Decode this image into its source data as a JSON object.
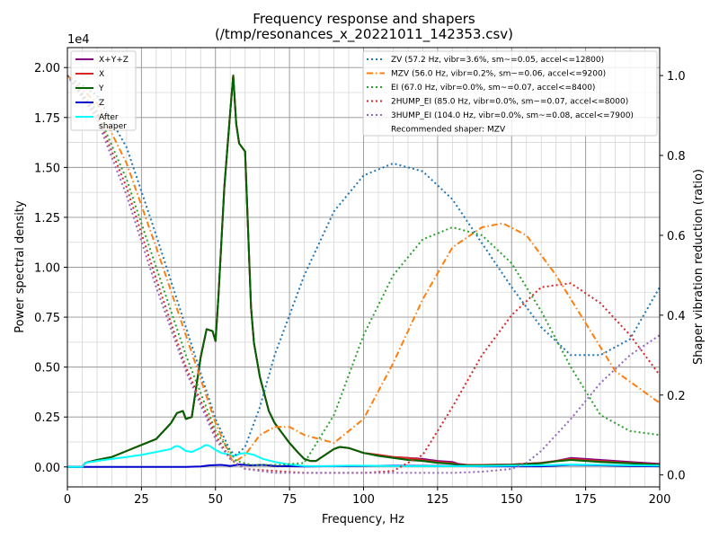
{
  "chart_data": {
    "type": "line",
    "title_line1": "Frequency response and shapers",
    "title_line2": "(/tmp/resonances_x_20221011_142353.csv)",
    "xlabel": "Frequency, Hz",
    "ylabel": "Power spectral density",
    "y2label": "Shaper vibration reduction (ratio)",
    "y_offset_label": "1e4",
    "xlim": [
      0,
      200
    ],
    "ylim": [
      -0.1,
      2.1
    ],
    "y2lim": [
      -0.03,
      1.07
    ],
    "x_ticks": [
      0,
      25,
      50,
      75,
      100,
      125,
      150,
      175,
      200
    ],
    "y_ticks": [
      0.0,
      0.25,
      0.5,
      0.75,
      1.0,
      1.25,
      1.5,
      1.75,
      2.0
    ],
    "y_tick_labels": [
      "0.00",
      "0.25",
      "0.50",
      "0.75",
      "1.00",
      "1.25",
      "1.50",
      "1.75",
      "2.00"
    ],
    "y2_ticks": [
      0.0,
      0.2,
      0.4,
      0.6,
      0.8,
      1.0
    ],
    "y2_tick_labels": [
      "0.0",
      "0.2",
      "0.4",
      "0.6",
      "0.8",
      "1.0"
    ],
    "grid": true,
    "psd_legend_loc": "upper left",
    "shaper_legend_loc": "upper right",
    "recommended_text": "Recommended shaper: MZV",
    "psd_series": [
      {
        "name": "X+Y+Z",
        "color": "#800080",
        "width": 2,
        "dash": "",
        "x": [
          0,
          5,
          6,
          10,
          15,
          20,
          25,
          30,
          35,
          37,
          39,
          40,
          42,
          45,
          47,
          49,
          50,
          51,
          53,
          55,
          56,
          57,
          58,
          60,
          62,
          63,
          65,
          68,
          70,
          72,
          75,
          78,
          80,
          82,
          84,
          87,
          90,
          92,
          95,
          100,
          105,
          110,
          115,
          120,
          125,
          130,
          132,
          135,
          140,
          150,
          160,
          165,
          170,
          175,
          180,
          190,
          200
        ],
        "y": [
          0,
          0,
          0.02,
          0.035,
          0.05,
          0.08,
          0.11,
          0.14,
          0.22,
          0.27,
          0.28,
          0.24,
          0.25,
          0.55,
          0.69,
          0.68,
          0.63,
          0.85,
          1.4,
          1.78,
          1.96,
          1.72,
          1.62,
          1.58,
          0.8,
          0.62,
          0.45,
          0.28,
          0.22,
          0.18,
          0.12,
          0.07,
          0.04,
          0.03,
          0.03,
          0.06,
          0.09,
          0.1,
          0.095,
          0.07,
          0.06,
          0.05,
          0.045,
          0.04,
          0.03,
          0.025,
          0.015,
          0.01,
          0.01,
          0.012,
          0.02,
          0.03,
          0.045,
          0.04,
          0.035,
          0.025,
          0.015
        ]
      },
      {
        "name": "X",
        "color": "#d62728",
        "width": 2,
        "dash": "",
        "x": [
          0,
          5,
          6,
          10,
          15,
          20,
          25,
          30,
          35,
          37,
          39,
          40,
          42,
          45,
          47,
          49,
          50,
          51,
          53,
          55,
          56,
          57,
          58,
          60,
          62,
          63,
          65,
          68,
          70,
          72,
          75,
          78,
          80,
          82,
          84,
          87,
          90,
          92,
          95,
          100,
          105,
          110,
          115,
          120,
          125,
          130,
          132,
          135,
          140,
          150,
          160,
          165,
          170,
          175,
          180,
          190,
          200
        ],
        "y": [
          0,
          0,
          0.02,
          0.035,
          0.05,
          0.08,
          0.11,
          0.14,
          0.22,
          0.27,
          0.28,
          0.24,
          0.25,
          0.55,
          0.69,
          0.68,
          0.63,
          0.85,
          1.4,
          1.78,
          1.96,
          1.72,
          1.62,
          1.58,
          0.8,
          0.62,
          0.45,
          0.28,
          0.22,
          0.18,
          0.12,
          0.07,
          0.04,
          0.03,
          0.03,
          0.06,
          0.09,
          0.1,
          0.095,
          0.07,
          0.06,
          0.05,
          0.045,
          0.035,
          0.025,
          0.02,
          0.012,
          0.01,
          0.01,
          0.012,
          0.02,
          0.03,
          0.04,
          0.035,
          0.03,
          0.02,
          0.012
        ]
      },
      {
        "name": "Y",
        "color": "#006400",
        "width": 2,
        "dash": "",
        "x": [
          0,
          5,
          6,
          10,
          15,
          20,
          25,
          30,
          35,
          37,
          39,
          40,
          42,
          45,
          47,
          49,
          50,
          51,
          53,
          55,
          56,
          57,
          58,
          60,
          62,
          63,
          65,
          68,
          70,
          72,
          75,
          78,
          80,
          82,
          84,
          87,
          90,
          92,
          95,
          100,
          105,
          110,
          115,
          120,
          125,
          130,
          132,
          135,
          140,
          150,
          160,
          165,
          170,
          175,
          180,
          190,
          200
        ],
        "y": [
          0,
          0,
          0.02,
          0.035,
          0.05,
          0.08,
          0.11,
          0.14,
          0.22,
          0.27,
          0.28,
          0.24,
          0.25,
          0.55,
          0.69,
          0.68,
          0.63,
          0.85,
          1.4,
          1.78,
          1.96,
          1.72,
          1.62,
          1.58,
          0.8,
          0.62,
          0.45,
          0.28,
          0.22,
          0.18,
          0.12,
          0.07,
          0.04,
          0.03,
          0.03,
          0.06,
          0.09,
          0.1,
          0.095,
          0.07,
          0.055,
          0.045,
          0.035,
          0.03,
          0.02,
          0.015,
          0.01,
          0.008,
          0.008,
          0.01,
          0.018,
          0.028,
          0.035,
          0.03,
          0.025,
          0.018,
          0.01
        ]
      },
      {
        "name": "Z",
        "color": "#0000cd",
        "width": 2,
        "dash": "",
        "x": [
          0,
          20,
          40,
          45,
          48,
          52,
          55,
          58,
          62,
          66,
          70,
          80,
          90,
          110,
          130,
          140,
          160,
          165,
          170,
          180,
          190,
          200
        ],
        "y": [
          0,
          0,
          0,
          0.002,
          0.008,
          0.01,
          0.005,
          0.012,
          0.008,
          0.01,
          0.005,
          0.002,
          0.004,
          0.006,
          0.005,
          0.003,
          0.003,
          0.006,
          0.01,
          0.008,
          0.005,
          0.003
        ]
      },
      {
        "name": "After\nshaper",
        "color": "#00ffff",
        "width": 2,
        "dash": "",
        "x": [
          0,
          5,
          6,
          10,
          15,
          20,
          25,
          30,
          35,
          36,
          37,
          38,
          40,
          42,
          45,
          46,
          47,
          48,
          50,
          52,
          55,
          56,
          57,
          58,
          60,
          63,
          66,
          70,
          75,
          80,
          85,
          90,
          95,
          100,
          110,
          120,
          130,
          140,
          150,
          160,
          170,
          180,
          200
        ],
        "y": [
          0,
          0,
          0.02,
          0.03,
          0.04,
          0.05,
          0.06,
          0.075,
          0.09,
          0.1,
          0.105,
          0.1,
          0.08,
          0.075,
          0.095,
          0.105,
          0.11,
          0.105,
          0.085,
          0.07,
          0.06,
          0.055,
          0.058,
          0.065,
          0.07,
          0.06,
          0.04,
          0.025,
          0.012,
          0.005,
          0.004,
          0.005,
          0.006,
          0.006,
          0.005,
          0.004,
          0.004,
          0.005,
          0.006,
          0.008,
          0.012,
          0.01,
          0.006
        ]
      }
    ],
    "shaper_series": [
      {
        "name": "ZV (57.2 Hz, vibr=3.6%, sm~=0.05, accel<=12800)",
        "color": "#1f77b4",
        "dash": "2,3",
        "x": [
          0,
          10,
          20,
          30,
          40,
          50,
          55,
          57,
          60,
          65,
          70,
          80,
          90,
          100,
          110,
          120,
          130,
          140,
          150,
          160,
          170,
          180,
          190,
          200
        ],
        "y": [
          1.0,
          0.95,
          0.82,
          0.6,
          0.37,
          0.14,
          0.06,
          0.05,
          0.07,
          0.17,
          0.3,
          0.5,
          0.66,
          0.75,
          0.78,
          0.76,
          0.69,
          0.58,
          0.47,
          0.37,
          0.3,
          0.3,
          0.34,
          0.47
        ]
      },
      {
        "name": "MZV (56.0 Hz, vibr=0.2%, sm~=0.06, accel<=9200)",
        "color": "#ff7f0e",
        "dash": "7,3,1.5,3",
        "x": [
          0,
          10,
          20,
          30,
          40,
          50,
          56,
          60,
          65,
          70,
          75,
          80,
          90,
          100,
          110,
          120,
          130,
          140,
          147,
          155,
          165,
          175,
          185,
          200
        ],
        "y": [
          1.0,
          0.93,
          0.78,
          0.57,
          0.35,
          0.13,
          0.03,
          0.05,
          0.1,
          0.12,
          0.12,
          0.1,
          0.08,
          0.14,
          0.28,
          0.44,
          0.57,
          0.62,
          0.63,
          0.6,
          0.5,
          0.38,
          0.26,
          0.18
        ]
      },
      {
        "name": "EI (67.0 Hz, vibr=0.0%, sm~=0.07, accel<=8400)",
        "color": "#2ca02c",
        "dash": "2,3",
        "x": [
          0,
          10,
          20,
          30,
          40,
          50,
          57,
          62,
          67,
          72,
          80,
          90,
          100,
          110,
          120,
          130,
          140,
          150,
          160,
          170,
          180,
          190,
          200
        ],
        "y": [
          1.0,
          0.91,
          0.74,
          0.52,
          0.3,
          0.11,
          0.035,
          0.025,
          0.025,
          0.025,
          0.03,
          0.15,
          0.35,
          0.5,
          0.59,
          0.62,
          0.6,
          0.53,
          0.41,
          0.27,
          0.15,
          0.11,
          0.1
        ]
      },
      {
        "name": "2HUMP_EI (85.0 Hz, vibr=0.0%, sm~=0.07, accel<=8000)",
        "color": "#d62728",
        "dash": "2,3",
        "x": [
          0,
          10,
          20,
          30,
          40,
          50,
          55,
          60,
          70,
          80,
          90,
          100,
          110,
          120,
          130,
          140,
          150,
          160,
          170,
          180,
          190,
          200
        ],
        "y": [
          1.0,
          0.9,
          0.72,
          0.49,
          0.27,
          0.1,
          0.04,
          0.015,
          0.01,
          0.005,
          0.005,
          0.005,
          0.01,
          0.05,
          0.17,
          0.3,
          0.4,
          0.47,
          0.48,
          0.43,
          0.35,
          0.25
        ]
      },
      {
        "name": "3HUMP_EI (104.0 Hz, vibr=0.0%, sm~=0.08, accel<=7900)",
        "color": "#9467bd",
        "dash": "2,3",
        "x": [
          0,
          10,
          20,
          30,
          40,
          50,
          55,
          60,
          70,
          80,
          90,
          100,
          110,
          120,
          130,
          140,
          150,
          155,
          160,
          170,
          180,
          190,
          200
        ],
        "y": [
          1.0,
          0.89,
          0.7,
          0.47,
          0.26,
          0.09,
          0.04,
          0.015,
          0.005,
          0.005,
          0.005,
          0.005,
          0.005,
          0.005,
          0.005,
          0.008,
          0.015,
          0.03,
          0.06,
          0.14,
          0.23,
          0.3,
          0.35
        ]
      }
    ]
  }
}
